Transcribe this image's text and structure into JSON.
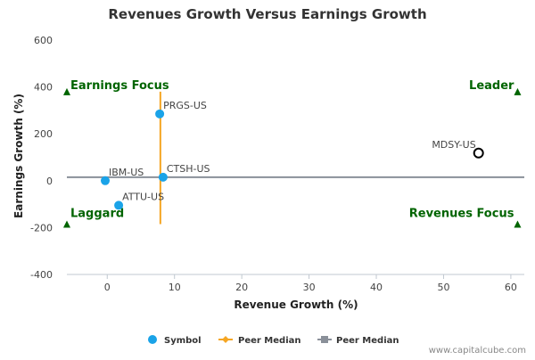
{
  "chart_data": {
    "type": "scatter",
    "title": "Revenues Growth Versus Earnings Growth",
    "xlabel": "Revenue Growth (%)",
    "ylabel": "Earnings Growth (%)",
    "xlim": [
      -6,
      62
    ],
    "ylim": [
      -400,
      600
    ],
    "x_ticks": [
      0,
      10,
      20,
      30,
      40,
      50,
      60
    ],
    "y_ticks": [
      -400,
      -200,
      0,
      200,
      400,
      600
    ],
    "grid": false,
    "points": [
      {
        "label": "PRGS-US",
        "x": 7.8,
        "y": 285,
        "style": "filled"
      },
      {
        "label": "CTSH-US",
        "x": 8.3,
        "y": 15,
        "style": "filled"
      },
      {
        "label": "IBM-US",
        "x": -0.3,
        "y": 0,
        "style": "filled"
      },
      {
        "label": "ATTU-US",
        "x": 1.7,
        "y": -105,
        "style": "filled"
      },
      {
        "label": "MDSY-US",
        "x": 55.2,
        "y": 118,
        "style": "hollow"
      }
    ],
    "peer_median": {
      "x": 7.9,
      "y": 15
    },
    "quadrants": {
      "top_left": "Earnings Focus",
      "top_right": "Leader",
      "bottom_left": "Laggard",
      "bottom_right": "Revenues Focus"
    },
    "legend": [
      {
        "name": "Symbol",
        "color": "#1aa3e8",
        "marker": "circle"
      },
      {
        "name": "Peer Median",
        "color": "#f5a623",
        "marker": "diamond-line"
      },
      {
        "name": "Peer Median",
        "color": "#8a9099",
        "marker": "square-line"
      }
    ],
    "legend_position": "bottom",
    "credit": "www.capitalcube.com",
    "colors": {
      "point": "#1aa3e8",
      "vertical_median": "#f5a623",
      "horizontal_median": "#8a9099",
      "quadrant": "#006400"
    }
  }
}
